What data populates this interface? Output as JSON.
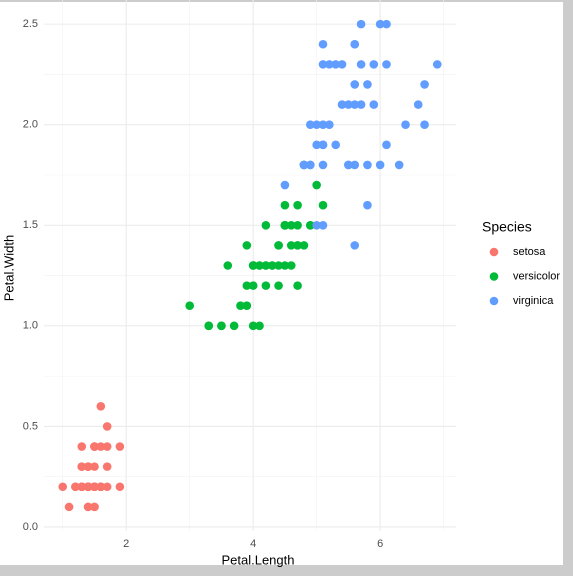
{
  "chart_data": {
    "type": "scatter",
    "x_label": "Petal.Length",
    "y_label": "Petal.Width",
    "legend_title": "Species",
    "xlim": [
      0.705,
      7.195
    ],
    "xticks": [
      2,
      4,
      6
    ],
    "xminor": [
      1,
      3,
      5,
      7
    ],
    "ylim": [
      -0.02,
      2.62
    ],
    "yticks": [
      {
        "value": 0,
        "label": "0.0"
      },
      0.5,
      {
        "value": 1,
        "label": "1.0"
      },
      1.5,
      {
        "value": 2,
        "label": "2.0"
      },
      2.5
    ],
    "yminor": [
      0.25,
      0.75,
      1.25,
      1.75,
      2.25
    ],
    "grid": true,
    "legend": "right",
    "series": [
      {
        "name": "setosa",
        "color": "#F8766D",
        "x": [
          1.4,
          1.4,
          1.3,
          1.5,
          1.4,
          1.7,
          1.4,
          1.5,
          1.4,
          1.5,
          1.5,
          1.6,
          1.4,
          1.1,
          1.2,
          1.5,
          1.3,
          1.4,
          1.7,
          1.5,
          1.7,
          1.5,
          1.0,
          1.7,
          1.9,
          1.6,
          1.6,
          1.5,
          1.4,
          1.6,
          1.6,
          1.5,
          1.5,
          1.4,
          1.5,
          1.2,
          1.3,
          1.4,
          1.3,
          1.5,
          1.3,
          1.3,
          1.3,
          1.6,
          1.9,
          1.4,
          1.6,
          1.4,
          1.5,
          1.4
        ],
        "values": [
          0.2,
          0.2,
          0.2,
          0.2,
          0.2,
          0.4,
          0.3,
          0.2,
          0.2,
          0.1,
          0.2,
          0.2,
          0.1,
          0.1,
          0.2,
          0.4,
          0.4,
          0.3,
          0.3,
          0.3,
          0.2,
          0.4,
          0.2,
          0.5,
          0.2,
          0.2,
          0.4,
          0.2,
          0.2,
          0.2,
          0.2,
          0.4,
          0.1,
          0.2,
          0.2,
          0.2,
          0.2,
          0.1,
          0.2,
          0.2,
          0.3,
          0.3,
          0.2,
          0.6,
          0.4,
          0.3,
          0.2,
          0.2,
          0.2,
          0.2
        ]
      },
      {
        "name": "versicolor",
        "color": "#00BA38",
        "x": [
          4.7,
          4.5,
          4.9,
          4.0,
          4.6,
          4.5,
          4.7,
          3.3,
          4.6,
          3.9,
          3.5,
          4.2,
          4.0,
          4.7,
          3.6,
          4.4,
          4.5,
          4.1,
          4.5,
          3.9,
          4.8,
          4.0,
          4.9,
          4.7,
          4.3,
          4.4,
          4.8,
          5.0,
          4.5,
          3.5,
          3.8,
          3.7,
          3.9,
          5.1,
          4.5,
          4.5,
          4.7,
          4.4,
          4.1,
          4.0,
          4.4,
          4.6,
          4.0,
          3.3,
          4.2,
          4.2,
          4.2,
          4.3,
          3.0,
          4.1
        ],
        "values": [
          1.4,
          1.5,
          1.5,
          1.3,
          1.5,
          1.3,
          1.6,
          1.0,
          1.3,
          1.4,
          1.0,
          1.5,
          1.0,
          1.4,
          1.3,
          1.4,
          1.5,
          1.0,
          1.5,
          1.1,
          1.8,
          1.3,
          1.5,
          1.2,
          1.3,
          1.4,
          1.4,
          1.7,
          1.5,
          1.0,
          1.1,
          1.0,
          1.2,
          1.6,
          1.5,
          1.6,
          1.5,
          1.3,
          1.3,
          1.3,
          1.2,
          1.4,
          1.2,
          1.0,
          1.3,
          1.2,
          1.3,
          1.3,
          1.1,
          1.3
        ]
      },
      {
        "name": "virginica",
        "color": "#619CFF",
        "x": [
          6.0,
          5.1,
          5.9,
          5.6,
          5.8,
          6.6,
          4.5,
          6.3,
          5.8,
          6.1,
          5.1,
          5.3,
          5.5,
          5.0,
          5.1,
          5.3,
          5.5,
          6.7,
          6.9,
          5.0,
          5.7,
          4.9,
          6.7,
          4.9,
          5.7,
          6.0,
          4.8,
          4.9,
          5.6,
          5.8,
          6.1,
          6.4,
          5.6,
          5.1,
          5.6,
          6.1,
          5.6,
          5.5,
          4.8,
          5.4,
          5.6,
          5.1,
          5.1,
          5.9,
          5.7,
          5.2,
          5.0,
          5.2,
          5.4,
          5.1
        ],
        "values": [
          2.5,
          1.9,
          2.1,
          1.8,
          2.2,
          2.1,
          1.7,
          1.8,
          1.8,
          2.5,
          2.0,
          1.9,
          2.1,
          2.0,
          2.4,
          2.3,
          1.8,
          2.2,
          2.3,
          1.5,
          2.3,
          2.0,
          2.0,
          1.8,
          2.1,
          1.8,
          1.8,
          1.8,
          2.1,
          1.6,
          1.9,
          2.0,
          2.2,
          1.5,
          1.4,
          2.3,
          2.4,
          1.8,
          1.8,
          2.1,
          2.4,
          2.3,
          1.9,
          2.3,
          2.5,
          2.3,
          1.9,
          2.0,
          2.3,
          1.8
        ]
      }
    ]
  }
}
